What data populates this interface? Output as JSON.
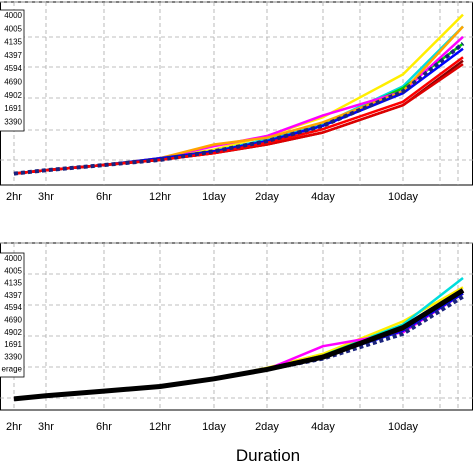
{
  "chart_data": [
    {
      "type": "line",
      "x_tick_labels": [
        "2hr",
        "3hr",
        "6hr",
        "12hr",
        "1day",
        "2day",
        "4day",
        "10day"
      ],
      "x_scale": "log",
      "legend_placement": "top-left",
      "grid": true,
      "legend_labels": [
        "4000",
        "4005",
        "4135",
        "4397",
        "4594",
        "4690",
        "4902",
        "1691",
        "3390"
      ],
      "series": [
        {
          "name": "4000",
          "color": "#ffee00",
          "values": [
            0.02,
            0.04,
            0.07,
            0.11,
            0.16,
            0.24,
            0.35,
            0.6,
            0.95
          ]
        },
        {
          "name": "4005",
          "color": "#00dddd",
          "values": [
            0.02,
            0.04,
            0.07,
            0.11,
            0.15,
            0.22,
            0.31,
            0.53,
            0.88
          ]
        },
        {
          "name": "4135",
          "color": "#00cc00",
          "values": [
            0.02,
            0.04,
            0.07,
            0.1,
            0.15,
            0.21,
            0.3,
            0.52,
            0.78
          ]
        },
        {
          "name": "4397",
          "color": "#ff00ff",
          "values": [
            0.02,
            0.04,
            0.07,
            0.11,
            0.18,
            0.24,
            0.36,
            0.5,
            0.82
          ]
        },
        {
          "name": "4594",
          "color": "#ffa500",
          "values": [
            0.02,
            0.04,
            0.07,
            0.11,
            0.19,
            0.23,
            0.32,
            0.5,
            0.88
          ]
        },
        {
          "name": "4690",
          "color": "#0000ff",
          "values": [
            0.02,
            0.04,
            0.07,
            0.11,
            0.15,
            0.21,
            0.3,
            0.49,
            0.75
          ]
        },
        {
          "name": "4902",
          "color": "#8b0000",
          "values": [
            0.02,
            0.04,
            0.07,
            0.1,
            0.14,
            0.19,
            0.26,
            0.42,
            0.68
          ]
        },
        {
          "name": "1691",
          "color": "#dd0000",
          "values": [
            0.02,
            0.04,
            0.07,
            0.1,
            0.14,
            0.19,
            0.26,
            0.42,
            0.66
          ]
        },
        {
          "name": "3390",
          "color": "#ff0000",
          "values": [
            0.02,
            0.04,
            0.07,
            0.1,
            0.14,
            0.2,
            0.28,
            0.44,
            0.7
          ]
        },
        {
          "name": "",
          "color": "#1a237e",
          "dashed": true,
          "values": [
            0.02,
            0.04,
            0.07,
            0.1,
            0.15,
            0.21,
            0.3,
            0.5,
            0.78
          ]
        }
      ]
    },
    {
      "type": "line",
      "x_tick_labels": [
        "2hr",
        "3hr",
        "6hr",
        "12hr",
        "1day",
        "2day",
        "4day",
        "10day"
      ],
      "x_scale": "log",
      "legend_placement": "top-left",
      "grid": true,
      "xlabel": "Duration",
      "legend_labels": [
        "4000",
        "4005",
        "4135",
        "4397",
        "4594",
        "4690",
        "4902",
        "1691",
        "3390",
        "erage"
      ],
      "series": [
        {
          "name": "4000",
          "color": "#ffee00",
          "values": [
            0.02,
            0.04,
            0.07,
            0.1,
            0.15,
            0.22,
            0.31,
            0.52,
            0.74
          ]
        },
        {
          "name": "4005",
          "color": "#00dddd",
          "values": [
            0.02,
            0.04,
            0.07,
            0.1,
            0.15,
            0.21,
            0.3,
            0.5,
            0.8
          ]
        },
        {
          "name": "4135",
          "color": "#00cc00",
          "values": [
            0.02,
            0.04,
            0.07,
            0.1,
            0.15,
            0.21,
            0.3,
            0.49,
            0.72
          ]
        },
        {
          "name": "4397",
          "color": "#ff00ff",
          "values": [
            0.02,
            0.04,
            0.07,
            0.1,
            0.15,
            0.21,
            0.36,
            0.45,
            0.7
          ]
        },
        {
          "name": "4594",
          "color": "#ffa500",
          "values": [
            0.02,
            0.04,
            0.07,
            0.1,
            0.15,
            0.21,
            0.3,
            0.47,
            0.7
          ]
        },
        {
          "name": "4690",
          "color": "#0000ff",
          "values": [
            0.02,
            0.04,
            0.07,
            0.1,
            0.15,
            0.21,
            0.29,
            0.46,
            0.7
          ]
        },
        {
          "name": "4902",
          "color": "#8b0000",
          "values": [
            0.02,
            0.04,
            0.07,
            0.1,
            0.15,
            0.21,
            0.29,
            0.47,
            0.72
          ]
        },
        {
          "name": "1691",
          "color": "#dd0000",
          "values": [
            0.02,
            0.04,
            0.07,
            0.1,
            0.15,
            0.21,
            0.29,
            0.47,
            0.72
          ]
        },
        {
          "name": "3390",
          "color": "#ff0000",
          "values": [
            0.02,
            0.04,
            0.07,
            0.1,
            0.15,
            0.21,
            0.29,
            0.47,
            0.72
          ]
        },
        {
          "name": "",
          "color": "#1a237e",
          "dashed": true,
          "values": [
            0.02,
            0.04,
            0.07,
            0.1,
            0.15,
            0.21,
            0.28,
            0.44,
            0.68
          ]
        },
        {
          "name": "erage",
          "color": "#000000",
          "thick": true,
          "values": [
            0.02,
            0.04,
            0.07,
            0.1,
            0.15,
            0.21,
            0.29,
            0.48,
            0.72
          ]
        }
      ]
    }
  ]
}
